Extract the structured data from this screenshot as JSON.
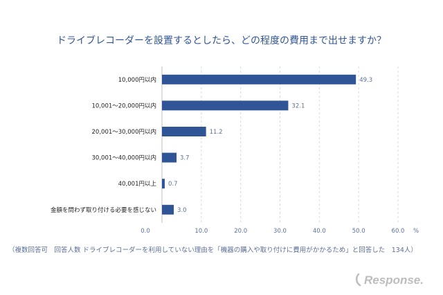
{
  "chart_data": {
    "type": "bar",
    "orientation": "horizontal",
    "title": "ドライブレコーダーを設置するとしたら、どの程度の費用まで出せますか？",
    "categories": [
      "10,000円以内",
      "10,001～20,000円以内",
      "20,001～30,000円以内",
      "30,001～40,000円以内",
      "40,001円以上",
      "金額を問わず取り付ける必要を感じない"
    ],
    "values": [
      49.3,
      32.1,
      11.2,
      3.7,
      0.7,
      3.0
    ],
    "value_labels": [
      "49.3",
      "32.1",
      "11.2",
      "3.7",
      "0.7",
      "3.0"
    ],
    "xlim": [
      0,
      60
    ],
    "xticks": [
      "0.0",
      "10.0",
      "20.0",
      "30.0",
      "40.0",
      "50.0",
      "60.0"
    ],
    "xunit": "%",
    "grid": true,
    "bar_color": "#2f5597",
    "title_color": "#2f5597"
  },
  "footnote": "（複数回答可　回答人数 ドライブレコーダーを利用していない理由を「機器の購入や取り付けに費用がかかるため」と回答した　134人）",
  "watermark": {
    "text": "Response.",
    "color": "#b7b7b7"
  }
}
